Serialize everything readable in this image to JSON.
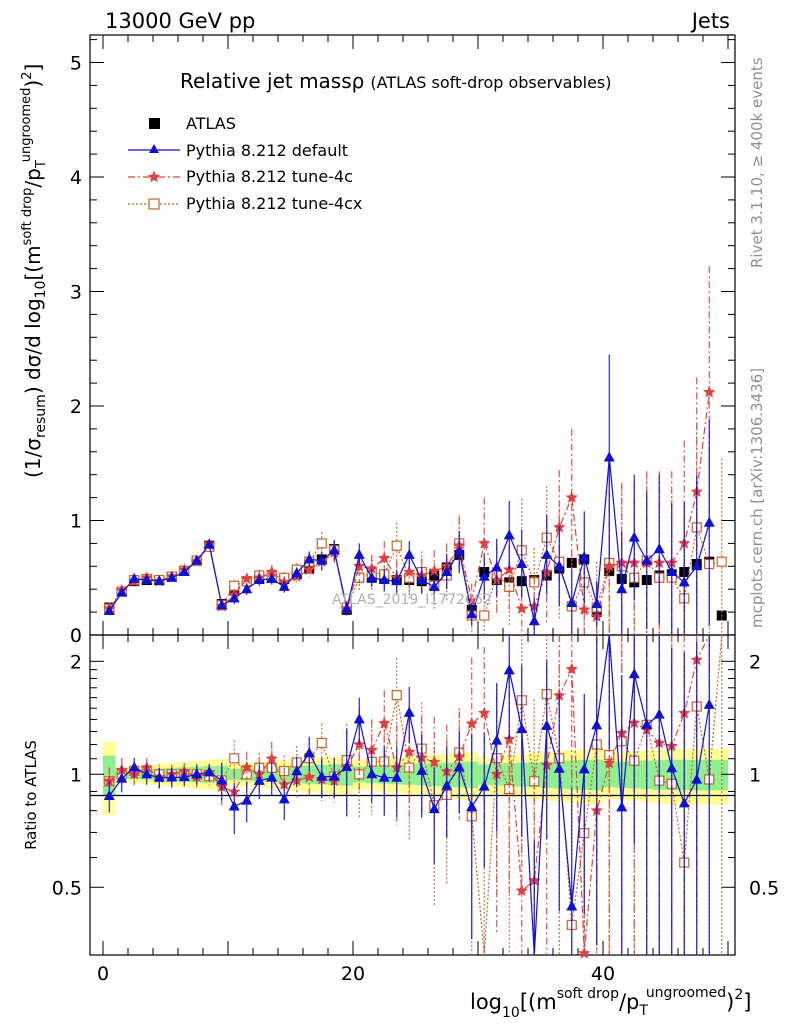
{
  "header": {
    "left": "13000 GeV pp",
    "right": "Jets"
  },
  "title": "Relative jet massρ",
  "subtitle": "(ATLAS soft-drop observables)",
  "side_labels": {
    "rivet": "Rivet 3.1.10, ≥ 400k events",
    "mcplots": "mcplots.cern.ch [arXiv:1306.3436]"
  },
  "watermark": "ATLAS_2019_I1772062",
  "axes": {
    "main_ylabel": "(1/σresum) dσ/d log10[(msoft drop/pTungroomed)2]",
    "ratio_ylabel": "Ratio to ATLAS",
    "xlabel": "log10[(msoft drop/pTungroomed)2]",
    "main_ticks": [
      "0",
      "1",
      "2",
      "3",
      "4",
      "5"
    ],
    "ratio_ticks": [
      "0.5",
      "1",
      "2"
    ],
    "x_ticks": [
      "0",
      "20",
      "40"
    ]
  },
  "legend": [
    {
      "label": "ATLAS",
      "color": "#000000"
    },
    {
      "label": "Pythia 8.212 default",
      "color": "#1010d0"
    },
    {
      "label": "Pythia 8.212 tune-4c",
      "color": "#e04040"
    },
    {
      "label": "Pythia 8.212 tune-4cx",
      "color": "#c86428"
    }
  ],
  "chart_data": {
    "type": "scatter",
    "title": "Relative jet massρ (ATLAS soft-drop observables)",
    "xlabel": "log10[(m soft drop / pT ungroomed)^2] (bin index)",
    "ylabel": "(1/σ_resum) dσ/d log10[(m soft drop / pT ungroomed)^2]",
    "xlim": [
      -1,
      51
    ],
    "ylim": [
      0,
      5.3
    ],
    "ratio_ylim": [
      0.33,
      2.35
    ],
    "x": [
      0.5,
      1.5,
      2.5,
      3.5,
      4.5,
      5.5,
      6.5,
      7.5,
      8.5,
      9.5,
      10.5,
      11.5,
      12.5,
      13.5,
      14.5,
      15.5,
      16.5,
      17.5,
      18.5,
      19.5,
      20.5,
      21.5,
      22.5,
      23.5,
      24.5,
      25.5,
      26.5,
      27.5,
      28.5,
      29.5,
      30.5,
      31.5,
      32.5,
      33.5,
      34.5,
      35.5,
      36.5,
      37.5,
      38.5,
      39.5,
      40.5,
      41.5,
      42.5,
      43.5,
      44.5,
      45.5,
      46.5,
      47.5,
      48.5,
      49.5
    ],
    "series": [
      {
        "name": "ATLAS",
        "values": [
          0.24,
          0.38,
          0.47,
          0.48,
          0.48,
          0.51,
          0.56,
          0.65,
          0.78,
          0.27,
          0.39,
          0.47,
          0.5,
          0.5,
          0.49,
          0.53,
          0.58,
          0.66,
          0.75,
          0.22,
          0.5,
          0.5,
          0.49,
          0.48,
          0.48,
          0.47,
          0.52,
          0.59,
          0.7,
          0.22,
          0.55,
          0.48,
          0.46,
          0.47,
          0.48,
          0.52,
          0.58,
          0.63,
          0.66,
          0.2,
          0.56,
          0.49,
          0.46,
          0.48,
          0.52,
          0.53,
          0.55,
          0.62,
          0.64,
          0.17
        ]
      },
      {
        "name": "Pythia 8.212 default",
        "values": [
          0.21,
          0.37,
          0.49,
          0.48,
          0.47,
          0.5,
          0.55,
          0.65,
          0.79,
          0.26,
          0.32,
          0.4,
          0.48,
          0.49,
          0.42,
          0.54,
          0.66,
          0.65,
          0.74,
          0.23,
          0.7,
          0.5,
          0.48,
          0.47,
          0.7,
          0.48,
          0.42,
          0.55,
          0.73,
          0.18,
          0.51,
          0.59,
          0.87,
          0.62,
          0.12,
          0.7,
          0.6,
          0.28,
          0.68,
          0.27,
          1.55,
          0.4,
          0.85,
          0.65,
          0.75,
          0.55,
          0.46,
          0.6,
          0.98,
          null
        ],
        "yerr": [
          0.02,
          0.03,
          0.03,
          0.03,
          0.03,
          0.03,
          0.03,
          0.04,
          0.04,
          0.03,
          0.05,
          0.05,
          0.05,
          0.05,
          0.05,
          0.05,
          0.07,
          0.08,
          0.09,
          0.06,
          0.1,
          0.08,
          0.1,
          0.1,
          0.12,
          0.12,
          0.12,
          0.15,
          0.18,
          0.1,
          0.2,
          0.25,
          0.3,
          0.3,
          0.2,
          0.35,
          0.35,
          0.3,
          0.4,
          0.2,
          0.9,
          0.5,
          0.55,
          0.6,
          0.65,
          0.6,
          0.7,
          0.8,
          0.9,
          null
        ]
      },
      {
        "name": "Pythia 8.212 tune-4c",
        "values": [
          0.23,
          0.39,
          0.47,
          0.5,
          0.47,
          0.51,
          0.57,
          0.64,
          0.79,
          0.25,
          0.35,
          0.49,
          0.5,
          0.55,
          0.46,
          0.51,
          0.57,
          0.64,
          0.72,
          0.23,
          0.6,
          0.58,
          0.67,
          0.5,
          0.55,
          0.52,
          0.56,
          0.6,
          0.78,
          0.3,
          0.8,
          0.48,
          0.57,
          0.23,
          0.25,
          0.55,
          0.94,
          1.2,
          0.22,
          0.16,
          0.6,
          0.63,
          0.63,
          0.63,
          0.63,
          0.63,
          0.8,
          1.25,
          2.12,
          null
        ],
        "yerr": [
          0.02,
          0.03,
          0.03,
          0.03,
          0.03,
          0.03,
          0.03,
          0.04,
          0.04,
          0.03,
          0.05,
          0.05,
          0.05,
          0.06,
          0.05,
          0.05,
          0.07,
          0.08,
          0.09,
          0.06,
          0.15,
          0.12,
          0.15,
          0.15,
          0.18,
          0.15,
          0.18,
          0.2,
          0.25,
          0.15,
          0.4,
          0.3,
          0.35,
          0.3,
          0.25,
          0.45,
          0.5,
          0.6,
          0.5,
          0.3,
          0.8,
          0.7,
          0.7,
          0.8,
          0.8,
          0.8,
          0.9,
          1.0,
          1.1,
          null
        ]
      },
      {
        "name": "Pythia 8.212 tune-4cx",
        "values": [
          0.23,
          0.38,
          0.48,
          0.49,
          0.48,
          0.51,
          0.56,
          0.65,
          0.77,
          0.26,
          0.43,
          0.47,
          0.52,
          0.52,
          0.5,
          0.57,
          0.64,
          0.8,
          0.74,
          0.24,
          0.5,
          0.54,
          0.53,
          0.78,
          0.5,
          0.55,
          0.43,
          0.52,
          0.8,
          0.17,
          0.17,
          0.53,
          0.42,
          0.74,
          0.46,
          0.85,
          0.64,
          0.25,
          0.46,
          0.24,
          0.63,
          0.6,
          0.5,
          0.65,
          0.5,
          0.5,
          0.32,
          0.94,
          0.62,
          0.64
        ],
        "yerr": [
          0.02,
          0.03,
          0.03,
          0.03,
          0.03,
          0.03,
          0.03,
          0.04,
          0.04,
          0.03,
          0.05,
          0.05,
          0.05,
          0.06,
          0.05,
          0.06,
          0.08,
          0.1,
          0.09,
          0.06,
          0.12,
          0.15,
          0.15,
          0.2,
          0.18,
          0.18,
          0.2,
          0.22,
          0.25,
          0.15,
          0.3,
          0.3,
          0.35,
          0.45,
          0.3,
          0.45,
          0.5,
          0.45,
          0.55,
          0.4,
          0.7,
          0.7,
          0.7,
          0.75,
          0.75,
          0.75,
          0.8,
          0.9,
          0.95,
          0.9
        ]
      }
    ]
  }
}
